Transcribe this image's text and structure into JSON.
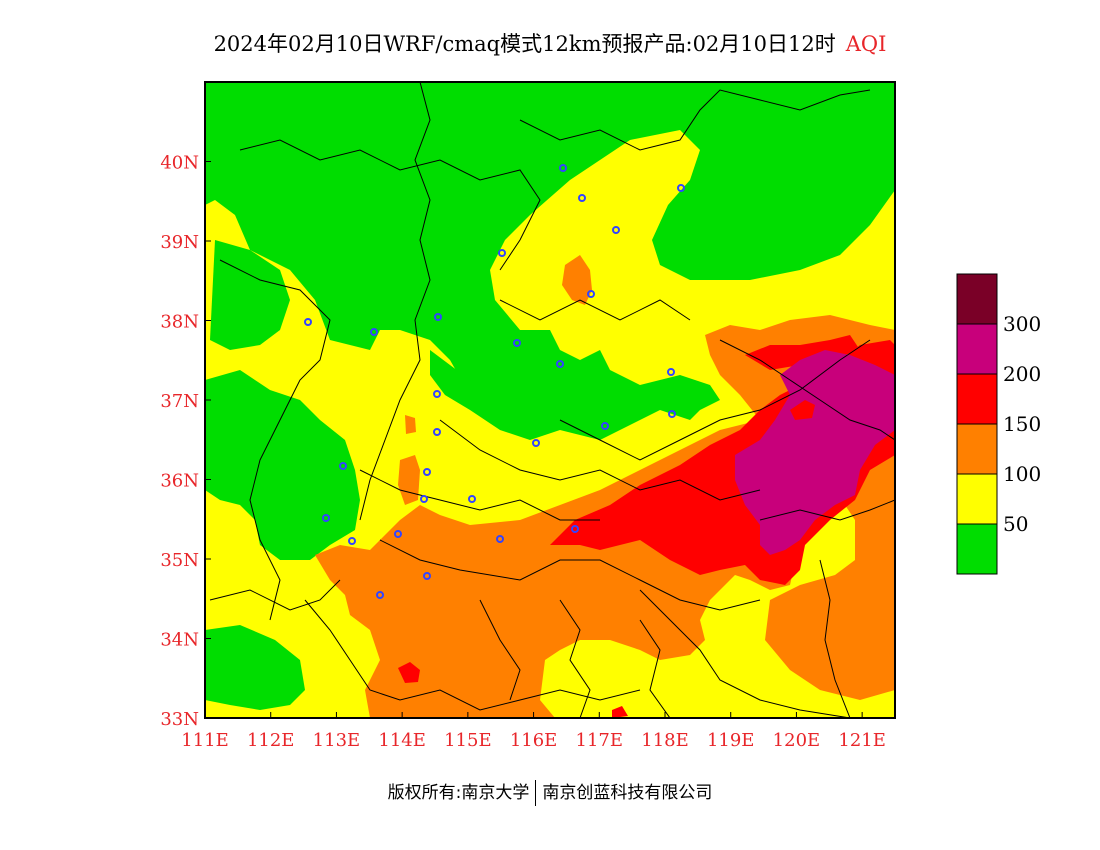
{
  "title": {
    "main": "2024年02月10日WRF/cmaq模式12km预报产品:02月10日12时",
    "variable": "AQI"
  },
  "footer": {
    "copyright": "版权所有:南京大学",
    "company": "南京创蓝科技有限公司"
  },
  "axes": {
    "x_ticks": [
      "111E",
      "112E",
      "113E",
      "114E",
      "115E",
      "116E",
      "117E",
      "118E",
      "119E",
      "120E",
      "121E"
    ],
    "y_ticks": [
      "40N",
      "39N",
      "38N",
      "37N",
      "36N",
      "35N",
      "34N",
      "33N"
    ],
    "lon_range": [
      111,
      121.5
    ],
    "lat_range": [
      33,
      41
    ]
  },
  "legend": {
    "labels": [
      "300",
      "200",
      "150",
      "100",
      "50"
    ],
    "colors": [
      "#7a0027",
      "#c8007b",
      "#ff0000",
      "#ff8000",
      "#ffff00",
      "#00dd00"
    ],
    "thresholds": [
      0,
      50,
      100,
      150,
      200,
      300
    ]
  },
  "colors": {
    "good": "#00dd00",
    "moderate": "#ffff00",
    "unhealthy_sensitive": "#ff8000",
    "unhealthy": "#ff0000",
    "very_unhealthy": "#c8007b",
    "hazardous": "#7a0027",
    "tick_text": "#e8262a",
    "city_marker": "#3344ff"
  }
}
